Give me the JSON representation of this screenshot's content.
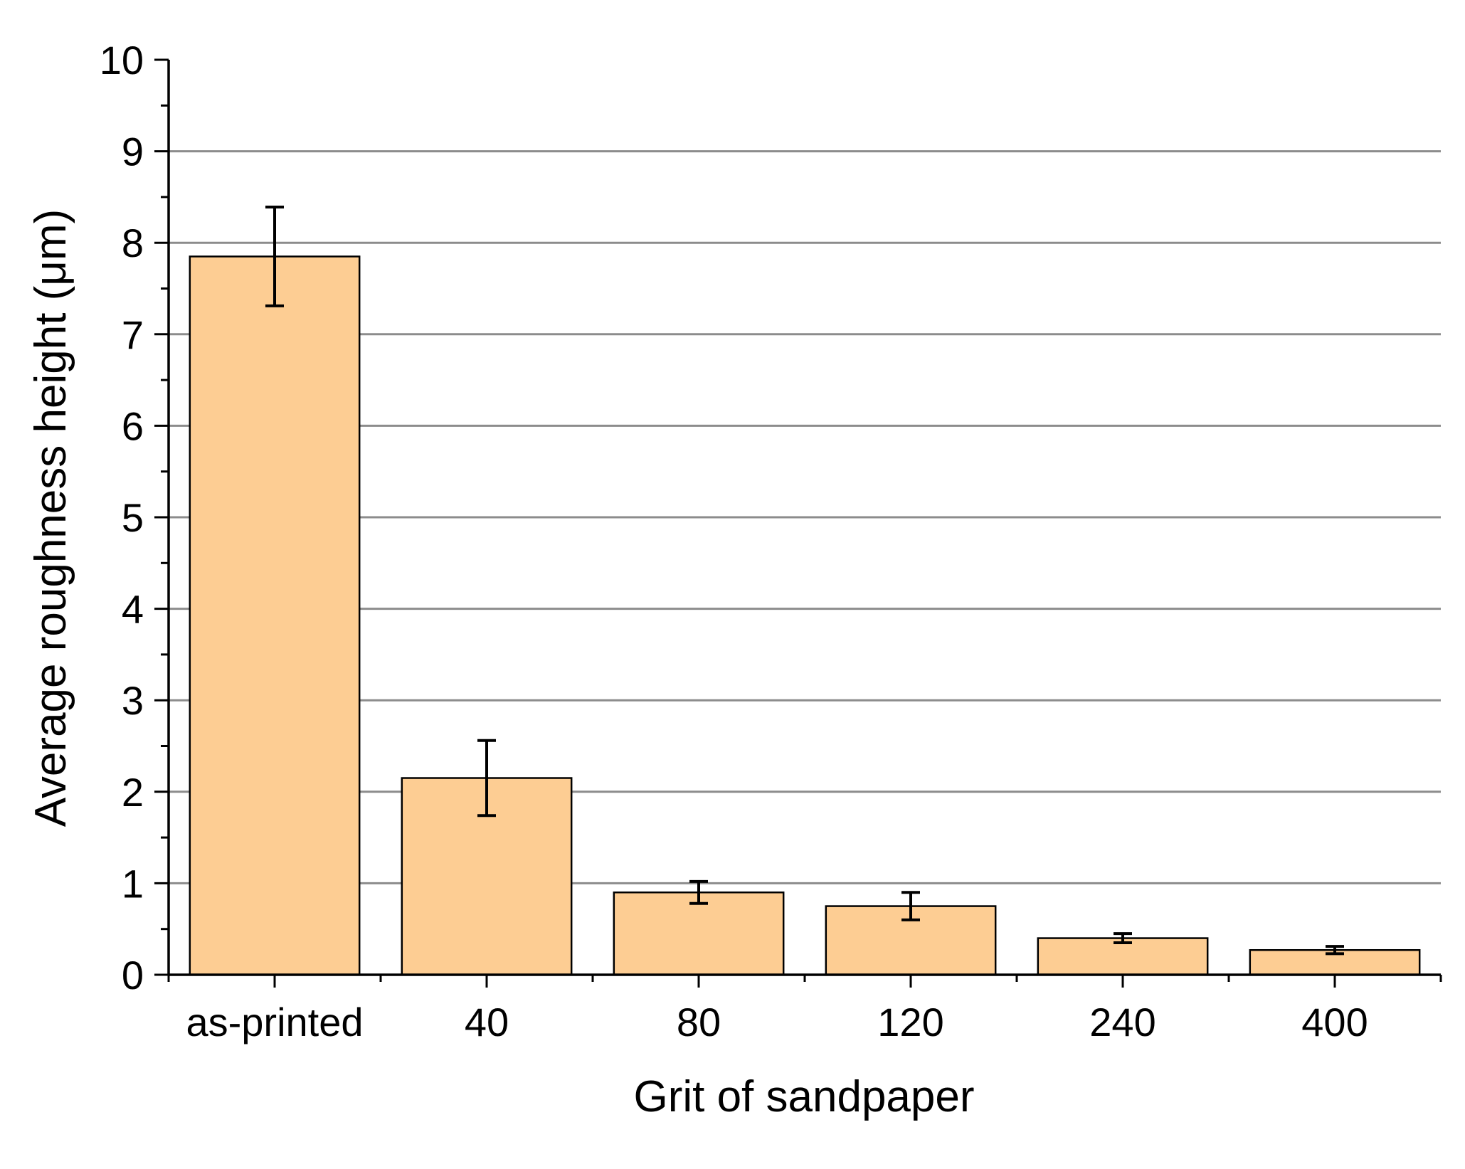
{
  "chart_data": {
    "type": "bar",
    "title": "",
    "xlabel": "Grit of sandpaper",
    "ylabel": "Average roughness height (μm)",
    "categories": [
      "as-printed",
      "40",
      "80",
      "120",
      "240",
      "400"
    ],
    "values": [
      7.85,
      2.15,
      0.9,
      0.75,
      0.4,
      0.27
    ],
    "error": [
      0.54,
      0.41,
      0.12,
      0.15,
      0.05,
      0.04
    ],
    "ylim": [
      0,
      10
    ],
    "yticks": [
      "0",
      "1",
      "2",
      "3",
      "4",
      "5",
      "6",
      "7",
      "8",
      "9",
      "10"
    ],
    "grid": "horizontal",
    "bar_color": "#FDCD93"
  }
}
